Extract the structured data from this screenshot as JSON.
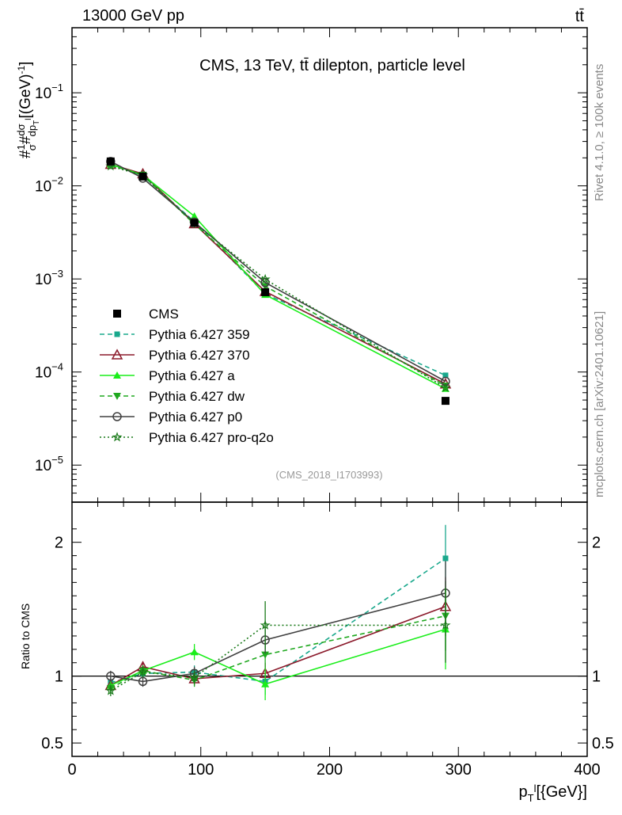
{
  "header": {
    "energy_label": "13000 GeV pp",
    "process_label": "tt̄"
  },
  "side_labels": {
    "rivet": "Rivet 4.1.0, ≥ 100k events",
    "mcplots": "mcplots.cern.ch [arXiv:2401.10621]"
  },
  "chart_data": {
    "type": "line",
    "title": "CMS, 13 TeV, tt̄ dilepton, particle level",
    "analysis_tag": "(CMS_2018_I1703993)",
    "xlabel": "p_T^l [{GeV}]",
    "ylabel": "#1/σ # dσ/dp_T^l [(GeV)^-1]",
    "ratio_ylabel": "Ratio to CMS",
    "xlim": [
      0,
      400
    ],
    "ylim": [
      4e-06,
      0.5
    ],
    "ratio_ylim": [
      0.4,
      2.3
    ],
    "x_ticks": [
      0,
      100,
      200,
      300,
      400
    ],
    "y_ticks": [
      {
        "value": 0.1,
        "mantissa": "10",
        "exponent": "−1"
      },
      {
        "value": 0.01,
        "mantissa": "10",
        "exponent": "−2"
      },
      {
        "value": 0.001,
        "mantissa": "10",
        "exponent": "−3"
      },
      {
        "value": 0.0001,
        "mantissa": "10",
        "exponent": "−4"
      },
      {
        "value": 1e-05,
        "mantissa": "10",
        "exponent": "−5"
      }
    ],
    "ratio_ticks": [
      {
        "value": 0.5,
        "label": "0.5"
      },
      {
        "value": 1,
        "label": "1"
      },
      {
        "value": 2,
        "label": "2"
      }
    ],
    "x": [
      30,
      55,
      95,
      150,
      290
    ],
    "data": {
      "name": "CMS",
      "values": [
        0.0183,
        0.0126,
        0.004,
        0.00072,
        4.9e-05
      ]
    },
    "series": [
      {
        "name": "Pythia 6.427 359",
        "color": "#19a88c",
        "dash": "6,4",
        "marker": "square-small",
        "ratio": [
          0.95,
          1.02,
          1.03,
          0.96,
          1.88
        ],
        "ratio_err": [
          0.04,
          0.04,
          0.05,
          0.1,
          0.25
        ]
      },
      {
        "name": "Pythia 6.427 370",
        "color": "#8b1a2b",
        "dash": "",
        "marker": "triangle-open",
        "ratio": [
          0.93,
          1.07,
          0.98,
          1.02,
          1.52
        ],
        "ratio_err": [
          0.04,
          0.04,
          0.05,
          0.08,
          0.22
        ]
      },
      {
        "name": "Pythia 6.427 a",
        "color": "#1aee1a",
        "dash": "",
        "marker": "triangle-filled",
        "ratio": [
          0.93,
          1.04,
          1.18,
          0.94,
          1.35
        ],
        "ratio_err": [
          0.04,
          0.04,
          0.06,
          0.12,
          0.3
        ]
      },
      {
        "name": "Pythia 6.427 dw",
        "color": "#1fa81f",
        "dash": "6,4",
        "marker": "triangle-down",
        "ratio": [
          0.91,
          1.04,
          0.97,
          1.16,
          1.45
        ],
        "ratio_err": [
          0.04,
          0.04,
          0.05,
          0.1,
          0.26
        ]
      },
      {
        "name": "Pythia 6.427 p0",
        "color": "#404040",
        "dash": "",
        "marker": "circle-open",
        "ratio": [
          1.0,
          0.96,
          1.02,
          1.27,
          1.62
        ],
        "ratio_err": [
          0.04,
          0.04,
          0.05,
          0.1,
          0.24
        ]
      },
      {
        "name": "Pythia 6.427 pro-q2o",
        "color": "#1a7a1a",
        "dash": "2,3",
        "marker": "star",
        "ratio": [
          0.89,
          1.03,
          0.99,
          1.38,
          1.38
        ],
        "ratio_err": [
          0.04,
          0.04,
          0.05,
          0.18,
          0.28
        ]
      }
    ]
  }
}
